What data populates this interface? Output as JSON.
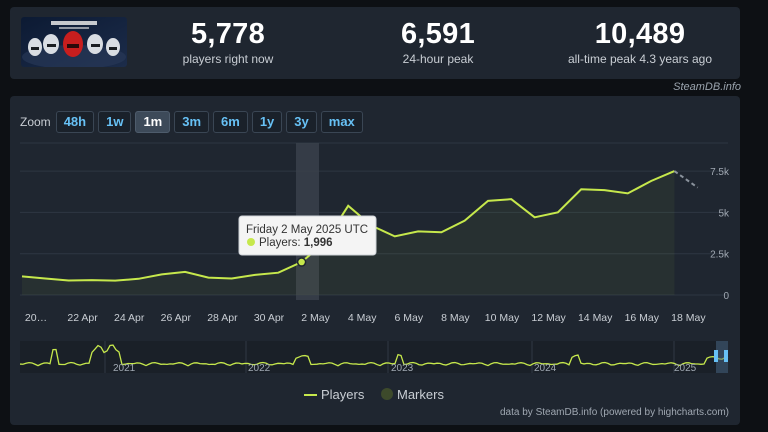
{
  "stats": {
    "players_now": "5,778",
    "players_now_label": "players right now",
    "peak_24h": "6,591",
    "peak_24h_label": "24-hour peak",
    "all_time_peak": "10,489",
    "all_time_peak_label": "all-time peak 4.3 years ago"
  },
  "credit_top": "SteamDB.info",
  "zoom": {
    "label": "Zoom",
    "options": [
      "48h",
      "1w",
      "1m",
      "3m",
      "6m",
      "1y",
      "3y",
      "max"
    ],
    "selected": "1m"
  },
  "tooltip": {
    "date": "Friday 2 May 2025 UTC",
    "series": "Players:",
    "value": "1,996"
  },
  "legend": [
    "Players",
    "Markers"
  ],
  "credit_bottom": "data by SteamDB.info (powered by highcharts.com)",
  "navigator_years": [
    "2021",
    "2022",
    "2023",
    "2024",
    "2025"
  ],
  "colors": {
    "series": "#c6e84c",
    "marker": "#3d4a2b",
    "accent": "#67c1f5"
  },
  "chart_data": {
    "type": "line",
    "xlabel": "",
    "ylabel": "",
    "x_ticks": [
      "20…",
      "22 Apr",
      "24 Apr",
      "26 Apr",
      "28 Apr",
      "30 Apr",
      "2 May",
      "4 May",
      "6 May",
      "8 May",
      "10 May",
      "12 May",
      "14 May",
      "16 May",
      "18 May"
    ],
    "y_ticks": [
      "0",
      "2.5k",
      "5k",
      "7.5k"
    ],
    "ylim": [
      0,
      9200
    ],
    "grid": true,
    "legend_position": "bottom-center",
    "series": [
      {
        "name": "Players",
        "x": [
          "20 Apr",
          "21 Apr",
          "22 Apr",
          "23 Apr",
          "24 Apr",
          "25 Apr",
          "26 Apr",
          "27 Apr",
          "28 Apr",
          "29 Apr",
          "30 Apr",
          "1 May",
          "2 May",
          "3 May",
          "4 May",
          "5 May",
          "6 May",
          "7 May",
          "8 May",
          "9 May",
          "10 May",
          "11 May",
          "12 May",
          "13 May",
          "14 May",
          "15 May",
          "16 May",
          "17 May",
          "18 May",
          "19 May"
        ],
        "values": [
          1130,
          1000,
          880,
          900,
          870,
          980,
          1250,
          1400,
          1050,
          1000,
          1220,
          1350,
          1996,
          3200,
          5400,
          4200,
          3550,
          3850,
          3800,
          4500,
          5700,
          5800,
          4700,
          5000,
          6400,
          6350,
          6150,
          6900,
          7500,
          6500
        ]
      }
    ],
    "highlight": {
      "x": "2 May",
      "value": 1996
    }
  }
}
